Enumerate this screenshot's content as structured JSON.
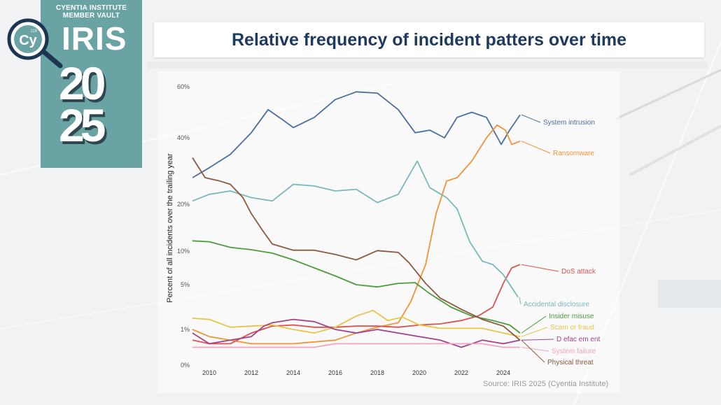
{
  "header": {
    "title": "Relative frequency of incident patters over time"
  },
  "brand": {
    "org_line1": "CYENTIA INSTITUTE",
    "org_line2": "MEMBER VAULT",
    "product": "IRIS",
    "year_top": "20",
    "year_bottom": "25",
    "logo_text": "Cy",
    "logo_number": "119",
    "panel_color": "#6aa3a3"
  },
  "source": "Source: IRIS 2025 (Cyentia Institute)",
  "chart_data": {
    "type": "line",
    "title": "Relative frequency of incident patters over time",
    "xlabel": "",
    "ylabel": "Percent of all incidents over the trailing year",
    "x_ticks": [
      "2010",
      "2012",
      "2014",
      "2016",
      "2018",
      "2020",
      "2022",
      "2024"
    ],
    "x_range": [
      2009.2,
      2025.2
    ],
    "y_scale": "custom-nonlinear",
    "y_ticks": [
      {
        "label": "0%",
        "value": 0
      },
      {
        "label": "1%",
        "value": 1
      },
      {
        "label": "5%",
        "value": 5
      },
      {
        "label": "10%",
        "value": 10
      },
      {
        "label": "20%",
        "value": 20
      },
      {
        "label": "40%",
        "value": 40
      },
      {
        "label": "60%",
        "value": 60
      }
    ],
    "grid": false,
    "legend": "direct labels at right end of each line",
    "series": [
      {
        "name": "System intrusion",
        "color": "#4a6f9e",
        "points": [
          [
            2009.2,
            28
          ],
          [
            2010,
            31
          ],
          [
            2011,
            35
          ],
          [
            2012,
            42
          ],
          [
            2012.8,
            51
          ],
          [
            2013.5,
            47
          ],
          [
            2014,
            44
          ],
          [
            2015,
            48
          ],
          [
            2016,
            55
          ],
          [
            2017,
            58
          ],
          [
            2018,
            57.5
          ],
          [
            2019,
            51
          ],
          [
            2019.8,
            42
          ],
          [
            2020.5,
            43
          ],
          [
            2021.2,
            40
          ],
          [
            2021.8,
            48
          ],
          [
            2022.5,
            50
          ],
          [
            2023.2,
            48
          ],
          [
            2023.9,
            38
          ],
          [
            2024.3,
            43
          ],
          [
            2024.8,
            49
          ]
        ]
      },
      {
        "name": "Ransomware",
        "color": "#f09435",
        "points": [
          [
            2009.2,
            1.0
          ],
          [
            2010,
            0.8
          ],
          [
            2012,
            0.6
          ],
          [
            2014,
            0.6
          ],
          [
            2016,
            0.7
          ],
          [
            2017,
            0.9
          ],
          [
            2018,
            1.2
          ],
          [
            2019,
            1.6
          ],
          [
            2019.6,
            3.5
          ],
          [
            2020.3,
            8
          ],
          [
            2020.8,
            18
          ],
          [
            2021.3,
            27
          ],
          [
            2021.8,
            28
          ],
          [
            2022.5,
            33
          ],
          [
            2023.2,
            40
          ],
          [
            2023.7,
            45
          ],
          [
            2024.1,
            43
          ],
          [
            2024.4,
            38
          ],
          [
            2024.8,
            39
          ]
        ]
      },
      {
        "name": "DoS attack",
        "color": "#d9534f",
        "points": [
          [
            2009.2,
            0.7
          ],
          [
            2010,
            0.6
          ],
          [
            2011,
            0.6
          ],
          [
            2012,
            0.9
          ],
          [
            2013,
            1.3
          ],
          [
            2014,
            1.4
          ],
          [
            2015,
            1.2
          ],
          [
            2016,
            1.2
          ],
          [
            2017,
            1.3
          ],
          [
            2018,
            1.3
          ],
          [
            2019,
            1.2
          ],
          [
            2020,
            1.4
          ],
          [
            2021,
            1.5
          ],
          [
            2022,
            1.8
          ],
          [
            2022.8,
            2.2
          ],
          [
            2023.5,
            3.0
          ],
          [
            2024,
            5.2
          ],
          [
            2024.4,
            7.5
          ],
          [
            2024.8,
            8
          ]
        ]
      },
      {
        "name": "Accidental disclosure",
        "color": "#7ab8b8",
        "points": [
          [
            2009.2,
            21
          ],
          [
            2010,
            23
          ],
          [
            2011,
            24
          ],
          [
            2012,
            22
          ],
          [
            2013,
            21
          ],
          [
            2014,
            26
          ],
          [
            2015,
            25.5
          ],
          [
            2016,
            24
          ],
          [
            2017,
            24.5
          ],
          [
            2018,
            20.5
          ],
          [
            2019,
            23
          ],
          [
            2019.9,
            33
          ],
          [
            2020.5,
            25
          ],
          [
            2021.3,
            22
          ],
          [
            2021.8,
            19
          ],
          [
            2022.4,
            12
          ],
          [
            2023,
            8.5
          ],
          [
            2023.5,
            8
          ],
          [
            2024,
            6.5
          ],
          [
            2024.7,
            3.9
          ]
        ]
      },
      {
        "name": "Insider misuse",
        "color": "#4e9a3e",
        "points": [
          [
            2009.2,
            12.2
          ],
          [
            2010,
            12
          ],
          [
            2011,
            10.8
          ],
          [
            2012,
            10.3
          ],
          [
            2013,
            9.7
          ],
          [
            2014,
            8.7
          ],
          [
            2015,
            7.5
          ],
          [
            2016,
            6.3
          ],
          [
            2017,
            5
          ],
          [
            2018,
            4.8
          ],
          [
            2019,
            5.2
          ],
          [
            2019.8,
            5.3
          ],
          [
            2020.5,
            4.2
          ],
          [
            2021.5,
            3
          ],
          [
            2022.5,
            2.2
          ],
          [
            2023.5,
            1.8
          ],
          [
            2024.3,
            1.4
          ],
          [
            2024.8,
            0.9
          ]
        ]
      },
      {
        "name": "Scam or fraud",
        "color": "#e8c547",
        "points": [
          [
            2009.2,
            2.0
          ],
          [
            2010,
            1.9
          ],
          [
            2011,
            1.2
          ],
          [
            2012,
            1.3
          ],
          [
            2013,
            1.4
          ],
          [
            2014,
            1.0
          ],
          [
            2015,
            0.9
          ],
          [
            2016,
            1.2
          ],
          [
            2016.6,
            1.8
          ],
          [
            2017,
            2.2
          ],
          [
            2017.8,
            2.7
          ],
          [
            2018.5,
            1.8
          ],
          [
            2019.2,
            2.1
          ],
          [
            2020,
            1.4
          ],
          [
            2021,
            1.1
          ],
          [
            2022,
            1.1
          ],
          [
            2023,
            1.1
          ],
          [
            2024,
            0.9
          ],
          [
            2024.8,
            0.8
          ]
        ]
      },
      {
        "name": "D efac em ent",
        "color": "#a0428a",
        "points": [
          [
            2009.2,
            0.9
          ],
          [
            2010,
            0.6
          ],
          [
            2011,
            0.7
          ],
          [
            2012,
            0.8
          ],
          [
            2012.6,
            1.3
          ],
          [
            2013,
            1.6
          ],
          [
            2014,
            1.9
          ],
          [
            2015,
            1.7
          ],
          [
            2016,
            1.0
          ],
          [
            2017,
            0.9
          ],
          [
            2018,
            1.0
          ],
          [
            2019,
            0.9
          ],
          [
            2020,
            0.8
          ],
          [
            2021,
            0.7
          ],
          [
            2022,
            0.5
          ],
          [
            2023,
            0.7
          ],
          [
            2024,
            0.6
          ],
          [
            2024.8,
            0.7
          ]
        ]
      },
      {
        "name": "System failure",
        "color": "#f2a3bd",
        "points": [
          [
            2009.2,
            0.5
          ],
          [
            2010,
            0.5
          ],
          [
            2011,
            0.5
          ],
          [
            2012,
            0.5
          ],
          [
            2013,
            0.5
          ],
          [
            2014,
            0.5
          ],
          [
            2015,
            0.5
          ],
          [
            2016,
            0.6
          ],
          [
            2017,
            0.6
          ],
          [
            2018,
            0.6
          ],
          [
            2019,
            0.6
          ],
          [
            2020,
            0.6
          ],
          [
            2021,
            0.6
          ],
          [
            2022,
            0.6
          ],
          [
            2023,
            0.6
          ],
          [
            2024,
            0.5
          ],
          [
            2024.8,
            0.5
          ]
        ]
      },
      {
        "name": "Physical threat",
        "color": "#8b5a3c",
        "points": [
          [
            2009.2,
            34
          ],
          [
            2009.8,
            28
          ],
          [
            2010.5,
            27
          ],
          [
            2011,
            26
          ],
          [
            2011.6,
            22
          ],
          [
            2012,
            18
          ],
          [
            2012.6,
            14
          ],
          [
            2013,
            11.5
          ],
          [
            2014,
            10.2
          ],
          [
            2015,
            10.2
          ],
          [
            2016,
            9.5
          ],
          [
            2017,
            8.7
          ],
          [
            2018,
            10.1
          ],
          [
            2019,
            9.8
          ],
          [
            2019.5,
            8.3
          ],
          [
            2020.3,
            5.2
          ],
          [
            2021,
            3.8
          ],
          [
            2022,
            2.8
          ],
          [
            2023,
            1.9
          ],
          [
            2024,
            1.3
          ],
          [
            2024.8,
            0.7
          ]
        ]
      }
    ]
  }
}
